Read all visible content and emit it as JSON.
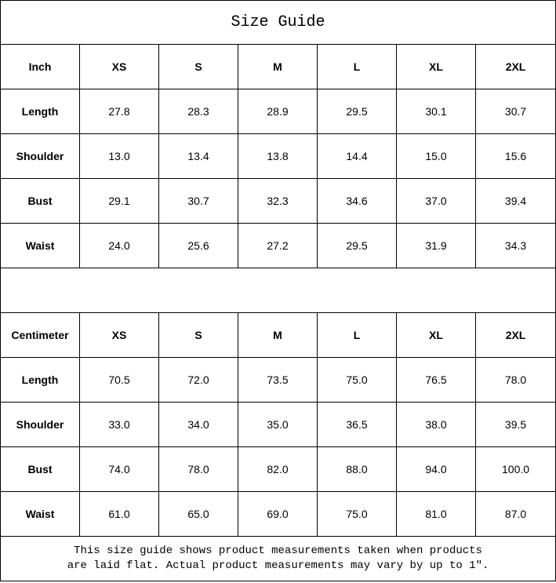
{
  "title": "Size Guide",
  "sizes": [
    "XS",
    "S",
    "M",
    "L",
    "XL",
    "2XL"
  ],
  "inch": {
    "unit_label": "Inch",
    "rows": [
      {
        "label": "Length",
        "values": [
          "27.8",
          "28.3",
          "28.9",
          "29.5",
          "30.1",
          "30.7"
        ]
      },
      {
        "label": "Shoulder",
        "values": [
          "13.0",
          "13.4",
          "13.8",
          "14.4",
          "15.0",
          "15.6"
        ]
      },
      {
        "label": "Bust",
        "values": [
          "29.1",
          "30.7",
          "32.3",
          "34.6",
          "37.0",
          "39.4"
        ]
      },
      {
        "label": "Waist",
        "values": [
          "24.0",
          "25.6",
          "27.2",
          "29.5",
          "31.9",
          "34.3"
        ]
      }
    ]
  },
  "centimeter": {
    "unit_label": "Centimeter",
    "rows": [
      {
        "label": "Length",
        "values": [
          "70.5",
          "72.0",
          "73.5",
          "75.0",
          "76.5",
          "78.0"
        ]
      },
      {
        "label": "Shoulder",
        "values": [
          "33.0",
          "34.0",
          "35.0",
          "36.5",
          "38.0",
          "39.5"
        ]
      },
      {
        "label": "Bust",
        "values": [
          "74.0",
          "78.0",
          "82.0",
          "88.0",
          "94.0",
          "100.0"
        ]
      },
      {
        "label": "Waist",
        "values": [
          "61.0",
          "65.0",
          "69.0",
          "75.0",
          "81.0",
          "87.0"
        ]
      }
    ]
  },
  "note": {
    "line1": "This size guide shows product measurements taken when products",
    "line2": "are laid flat. Actual product measurements may vary by up to 1″."
  }
}
